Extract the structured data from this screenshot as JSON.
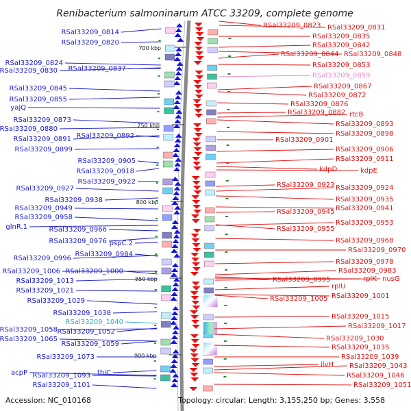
{
  "title": "Renibacterium salmoninarum ATCC 33209, complete genome",
  "footer": {
    "accession": "Accession: NC_010168",
    "topology": "Topology: circular; Length: 3,155,250 bp; Genes: 3,558"
  },
  "colors": {
    "left_label": "#1a1acc",
    "right_label": "#dd1111",
    "cyan_label": "#33aacc",
    "pink_label": "#ee88cc",
    "backbone": "#888888",
    "forward_arrow": "#1515dd",
    "reverse_arrow": "#ee1111"
  },
  "kbp_ticks": [
    "700 kbp",
    "750 kbp",
    "800 kbp",
    "850 kbp",
    "900 kbp"
  ],
  "left_labels": [
    {
      "text": "RSal33209_0814",
      "color": "blue"
    },
    {
      "text": "RSal33209_0820",
      "color": "blue"
    },
    {
      "text": "RSal33209_0824",
      "color": "blue"
    },
    {
      "text": "RSal33209_0830",
      "color": "blue"
    },
    {
      "text": "RSal33209_0837",
      "color": "blue"
    },
    {
      "text": "RSal33209_0845",
      "color": "blue"
    },
    {
      "text": "RSal33209_0855",
      "color": "blue"
    },
    {
      "text": "yajQ",
      "color": "blue"
    },
    {
      "text": "RSal33209_0873",
      "color": "blue"
    },
    {
      "text": "RSal33209_0880",
      "color": "blue"
    },
    {
      "text": "RSal33209_0892",
      "color": "blue"
    },
    {
      "text": "RSal33209_0891",
      "color": "blue"
    },
    {
      "text": "RSal33209_0899",
      "color": "blue"
    },
    {
      "text": "RSal33209_0905",
      "color": "blue"
    },
    {
      "text": "RSal33209_0918",
      "color": "blue"
    },
    {
      "text": "RSal33209_0922",
      "color": "blue"
    },
    {
      "text": "RSal33209_0927",
      "color": "blue"
    },
    {
      "text": "RSal33209_0938",
      "color": "blue"
    },
    {
      "text": "RSal33209_0949",
      "color": "blue"
    },
    {
      "text": "RSal33209_0958",
      "color": "blue"
    },
    {
      "text": "glnR.1",
      "color": "blue"
    },
    {
      "text": "RSal33209_0966",
      "color": "blue"
    },
    {
      "text": "RSal33209_0976",
      "color": "blue"
    },
    {
      "text": "pspC.2",
      "color": "blue"
    },
    {
      "text": "RSal33209_0984",
      "color": "blue"
    },
    {
      "text": "RSal33209_0996",
      "color": "blue"
    },
    {
      "text": "RSal33209_1006",
      "color": "blue"
    },
    {
      "text": "RSal33209_1000",
      "color": "blue"
    },
    {
      "text": "RSal33209_1013",
      "color": "blue"
    },
    {
      "text": "RSal33209_1021",
      "color": "blue"
    },
    {
      "text": "RSal33209_1029",
      "color": "blue"
    },
    {
      "text": "RSal33209_1038",
      "color": "blue"
    },
    {
      "text": "RSal33209_1040",
      "color": "cyan"
    },
    {
      "text": "RSal33209_1052",
      "color": "blue"
    },
    {
      "text": "RSal33209_1058",
      "color": "blue"
    },
    {
      "text": "RSal33209_1065",
      "color": "blue"
    },
    {
      "text": "RSal33209_1059",
      "color": "blue"
    },
    {
      "text": "RSal33209_1073",
      "color": "blue"
    },
    {
      "text": "acpP",
      "color": "blue"
    },
    {
      "text": "thiC",
      "color": "blue"
    },
    {
      "text": "RSal33209_1093",
      "color": "blue"
    },
    {
      "text": "RSal33209_1101",
      "color": "blue"
    }
  ],
  "right_labels": [
    {
      "text": "RSal33209_0823",
      "color": "red"
    },
    {
      "text": "RSal33209_0831",
      "color": "red"
    },
    {
      "text": "RSal33209_0835",
      "color": "red"
    },
    {
      "text": "RSal33209_0842",
      "color": "red"
    },
    {
      "text": "RSal33209_0844",
      "color": "red"
    },
    {
      "text": "RSal33209_0848",
      "color": "red"
    },
    {
      "text": "RSal33209_0853",
      "color": "red"
    },
    {
      "text": "RSal33209_0859",
      "color": "pink"
    },
    {
      "text": "RSal33209_0867",
      "color": "red"
    },
    {
      "text": "RSal33209_0872",
      "color": "red"
    },
    {
      "text": "RSal33209_0876",
      "color": "red"
    },
    {
      "text": "RSal33209_0882",
      "color": "red"
    },
    {
      "text": "rtcB",
      "color": "red"
    },
    {
      "text": "RSal33209_0893",
      "color": "red"
    },
    {
      "text": "RSal33209_0898",
      "color": "red"
    },
    {
      "text": "RSal33209_0901",
      "color": "red"
    },
    {
      "text": "RSal33209_0906",
      "color": "red"
    },
    {
      "text": "RSal33209_0911",
      "color": "red"
    },
    {
      "text": "kdpD",
      "color": "red"
    },
    {
      "text": "kdpE",
      "color": "red"
    },
    {
      "text": "RSal33209_0923",
      "color": "red"
    },
    {
      "text": "RSal33209_0924",
      "color": "red"
    },
    {
      "text": "RSal33209_0935",
      "color": "red"
    },
    {
      "text": "RSal33209_0941",
      "color": "red"
    },
    {
      "text": "RSal33209_0945",
      "color": "red"
    },
    {
      "text": "RSal33209_0953",
      "color": "red"
    },
    {
      "text": "RSal33209_0955",
      "color": "red"
    },
    {
      "text": "RSal33209_0968",
      "color": "red"
    },
    {
      "text": "RSal33209_0970",
      "color": "red"
    },
    {
      "text": "RSal33209_0978",
      "color": "red"
    },
    {
      "text": "RSal33209_0983",
      "color": "red"
    },
    {
      "text": "RSal33209_0995",
      "color": "red"
    },
    {
      "text": "rplK",
      "color": "red"
    },
    {
      "text": "nusG",
      "color": "red"
    },
    {
      "text": "rplU",
      "color": "red"
    },
    {
      "text": "RSal33209_1005",
      "color": "red"
    },
    {
      "text": "RSal33209_1001",
      "color": "red"
    },
    {
      "text": "RSal33209_1015",
      "color": "red"
    },
    {
      "text": "RSal33209_1017",
      "color": "red"
    },
    {
      "text": "RSal33209_1030",
      "color": "red"
    },
    {
      "text": "RSal33209_1035",
      "color": "red"
    },
    {
      "text": "RSal33209_1039",
      "color": "red"
    },
    {
      "text": "ilvH",
      "color": "red"
    },
    {
      "text": "RSal33209_1043",
      "color": "red"
    },
    {
      "text": "RSal33209_1046",
      "color": "red"
    },
    {
      "text": "RSal33209_1051",
      "color": "red"
    }
  ]
}
